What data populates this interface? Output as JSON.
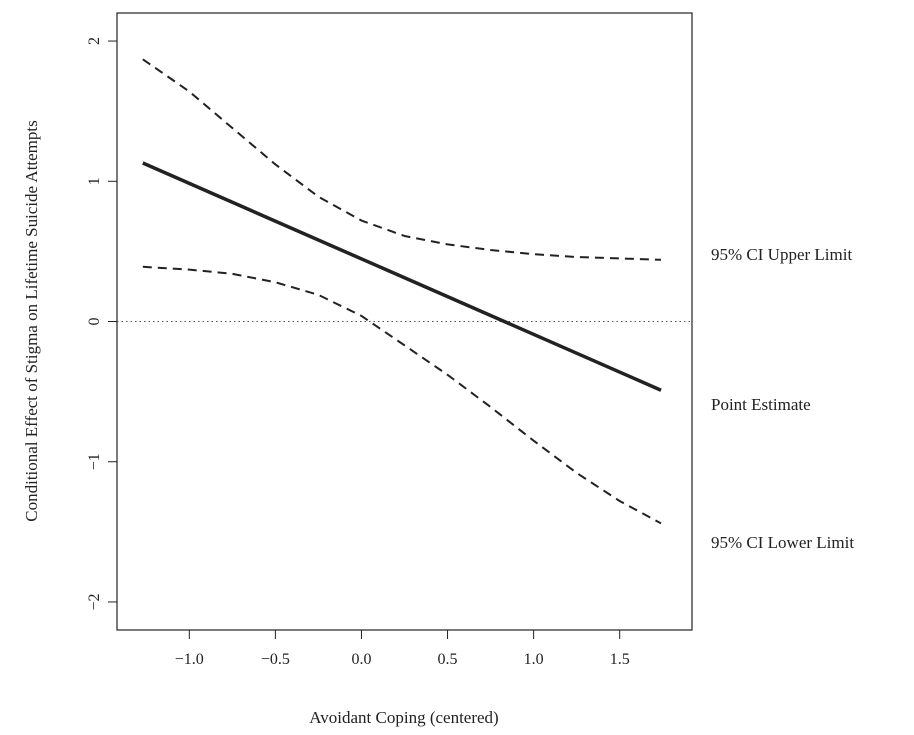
{
  "chart_data": {
    "type": "line",
    "title": "",
    "xlabel": "Avoidant Coping (centered)",
    "ylabel": "Conditional Effect of Stigma on Lifetime Suicide Attempts",
    "xlim": [
      -1.42,
      1.92
    ],
    "ylim": [
      -2.2,
      2.2
    ],
    "xticks": [
      -1.0,
      -0.5,
      0.0,
      0.5,
      1.0,
      1.5
    ],
    "xtick_labels": [
      "−1.0",
      "−0.5",
      "0.0",
      "0.5",
      "1.0",
      "1.5"
    ],
    "yticks": [
      -2,
      -1,
      0,
      1,
      2
    ],
    "ytick_labels": [
      "−2",
      "−1",
      "0",
      "1",
      "2"
    ],
    "reference_line": {
      "y": 0,
      "style": "dotted"
    },
    "grid": false,
    "series": [
      {
        "name": "Point Estimate",
        "style": "solid",
        "x": [
          -1.27,
          1.74
        ],
        "y": [
          1.13,
          -0.49
        ]
      },
      {
        "name": "95% CI Upper Limit",
        "style": "dashed",
        "x": [
          -1.27,
          -1.0,
          -0.75,
          -0.5,
          -0.25,
          0.0,
          0.25,
          0.5,
          0.75,
          1.0,
          1.25,
          1.5,
          1.74
        ],
        "y": [
          1.87,
          1.64,
          1.38,
          1.12,
          0.89,
          0.72,
          0.61,
          0.55,
          0.51,
          0.48,
          0.46,
          0.45,
          0.44
        ]
      },
      {
        "name": "95% CI Lower Limit",
        "style": "dashed",
        "x": [
          -1.27,
          -1.0,
          -0.75,
          -0.5,
          -0.25,
          0.0,
          0.25,
          0.5,
          0.75,
          1.0,
          1.25,
          1.5,
          1.74
        ],
        "y": [
          0.39,
          0.37,
          0.34,
          0.28,
          0.19,
          0.04,
          -0.17,
          -0.38,
          -0.61,
          -0.85,
          -1.08,
          -1.28,
          -1.44
        ]
      }
    ],
    "line_labels": [
      "95% CI Upper Limit",
      "Point Estimate",
      "95% CI Lower Limit"
    ],
    "colors": {
      "line": "#222222",
      "reference": "#555555"
    }
  }
}
